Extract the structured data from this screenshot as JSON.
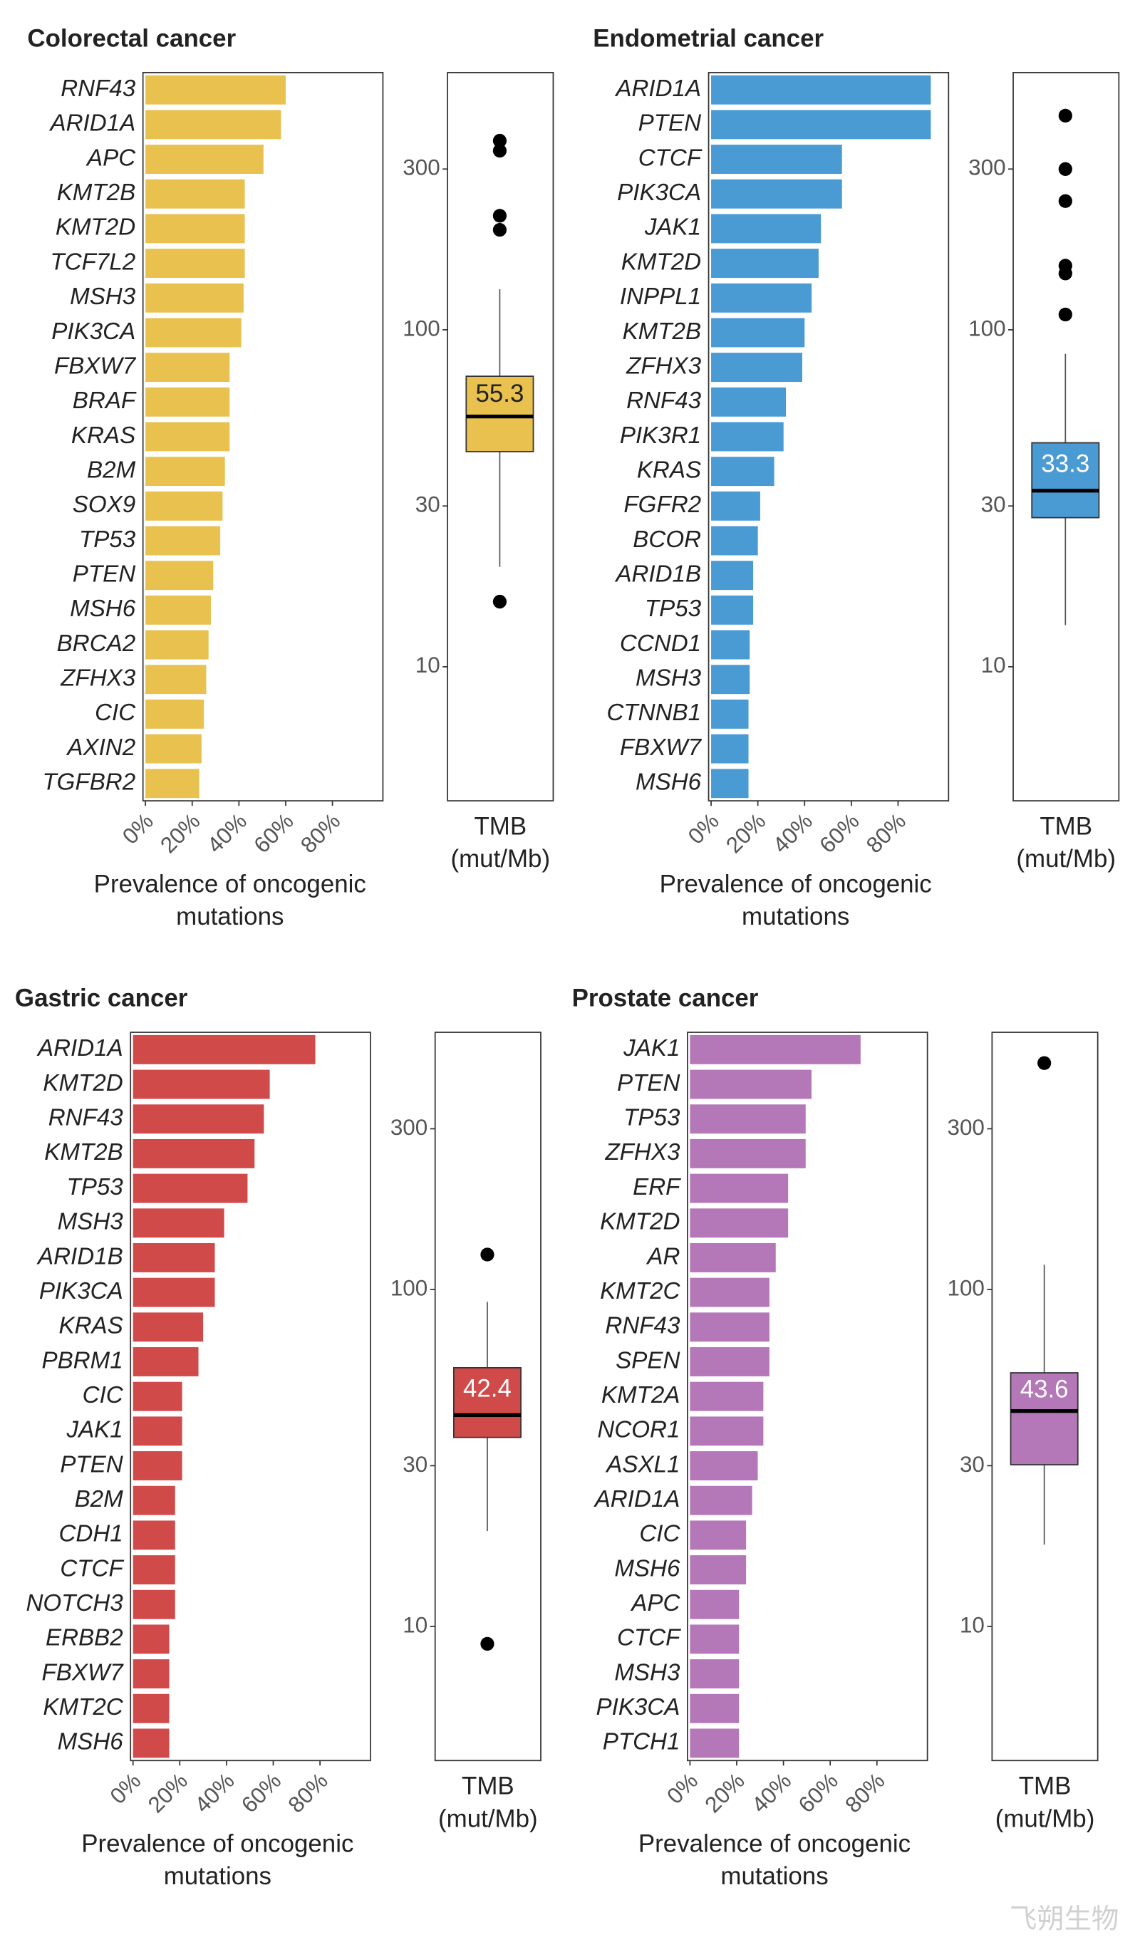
{
  "chart_data": [
    {
      "type": "bar",
      "title": "Colorectal cancer",
      "orientation": "horizontal",
      "categories": [
        "RNF43",
        "ARID1A",
        "APC",
        "KMT2B",
        "KMT2D",
        "TCF7L2",
        "MSH3",
        "PIK3CA",
        "FBXW7",
        "BRAF",
        "KRAS",
        "B2M",
        "SOX9",
        "TP53",
        "PTEN",
        "MSH6",
        "BRCA2",
        "ZFHX3",
        "CIC",
        "AXIN2",
        "TGFBR2"
      ],
      "values": [
        60,
        58,
        50.5,
        42.5,
        42.5,
        42.5,
        42,
        41,
        36,
        36,
        36,
        34,
        33,
        32,
        29,
        28,
        27,
        26,
        25,
        24,
        23
      ],
      "color": "#e8c14f",
      "xlim": [
        0,
        100
      ],
      "xticks": [
        {
          "value": 0,
          "label": "0%"
        },
        {
          "value": 20,
          "label": "20%"
        },
        {
          "value": 40,
          "label": "40%"
        },
        {
          "value": 60,
          "label": "60%"
        },
        {
          "value": 80,
          "label": "80%"
        }
      ],
      "xlabel": "Prevalence of oncogenic mutations"
    },
    {
      "type": "box",
      "ylabel": "TMB (mut/Mb)",
      "log_scale": true,
      "ylim": [
        4,
        580
      ],
      "yticks": [
        10,
        30,
        100,
        300
      ],
      "median": 55.3,
      "q1": 43.5,
      "q3": 72.8,
      "whisker_low": 19.8,
      "whisker_high": 132,
      "outliers": [
        364,
        340,
        218,
        198,
        15.6
      ],
      "color": "#e8c14f",
      "median_label_color": "#222"
    },
    {
      "type": "bar",
      "title": "Endometrial cancer",
      "orientation": "horizontal",
      "categories": [
        "ARID1A",
        "PTEN",
        "CTCF",
        "PIK3CA",
        "JAK1",
        "KMT2D",
        "INPPL1",
        "KMT2B",
        "ZFHX3",
        "RNF43",
        "PIK3R1",
        "KRAS",
        "FGFR2",
        "BCOR",
        "ARID1B",
        "TP53",
        "CCND1",
        "MSH3",
        "CTNNB1",
        "FBXW7",
        "MSH6"
      ],
      "values": [
        94,
        94,
        56,
        56,
        47,
        46,
        43,
        40,
        39,
        32,
        31,
        27,
        21,
        20,
        18,
        18,
        16.5,
        16.5,
        16,
        16,
        16
      ],
      "color": "#4a9ad4",
      "xlim": [
        0,
        100
      ],
      "xticks": [
        {
          "value": 0,
          "label": "0%"
        },
        {
          "value": 20,
          "label": "20%"
        },
        {
          "value": 40,
          "label": "40%"
        },
        {
          "value": 60,
          "label": "60%"
        },
        {
          "value": 80,
          "label": "80%"
        }
      ],
      "xlabel": "Prevalence of oncogenic mutations"
    },
    {
      "type": "box",
      "ylabel": "TMB (mut/Mb)",
      "log_scale": true,
      "ylim": [
        4,
        580
      ],
      "yticks": [
        10,
        30,
        100,
        300
      ],
      "median": 33.3,
      "q1": 27.7,
      "q3": 46.2,
      "whisker_low": 13.3,
      "whisker_high": 84.9,
      "outliers": [
        432,
        300,
        241,
        155,
        147,
        111
      ],
      "color": "#4a9ad4",
      "median_label_color": "#ffffff"
    },
    {
      "type": "bar",
      "title": "Gastric cancer",
      "orientation": "horizontal",
      "categories": [
        "ARID1A",
        "KMT2D",
        "RNF43",
        "KMT2B",
        "TP53",
        "MSH3",
        "ARID1B",
        "PIK3CA",
        "KRAS",
        "PBRM1",
        "CIC",
        "JAK1",
        "PTEN",
        "B2M",
        "CDH1",
        "CTCF",
        "NOTCH3",
        "ERBB2",
        "FBXW7",
        "KMT2C",
        "MSH6"
      ],
      "values": [
        78,
        58.5,
        56,
        52,
        49,
        39,
        35,
        35,
        30,
        28,
        21,
        21,
        21,
        18,
        18,
        18,
        18,
        15.5,
        15.5,
        15.5,
        15.5
      ],
      "color": "#d04a4a",
      "xlim": [
        0,
        100
      ],
      "xticks": [
        {
          "value": 0,
          "label": "0%"
        },
        {
          "value": 20,
          "label": "20%"
        },
        {
          "value": 40,
          "label": "40%"
        },
        {
          "value": 60,
          "label": "60%"
        },
        {
          "value": 80,
          "label": "80%"
        }
      ],
      "xlabel": "Prevalence of oncogenic mutations"
    },
    {
      "type": "box",
      "ylabel": "TMB (mut/Mb)",
      "log_scale": true,
      "ylim": [
        4,
        580
      ],
      "yticks": [
        10,
        30,
        100,
        300
      ],
      "median": 42.4,
      "q1": 36.4,
      "q3": 58.6,
      "whisker_low": 19.2,
      "whisker_high": 91.9,
      "outliers": [
        127,
        8.88
      ],
      "color": "#d04a4a",
      "median_label_color": "#ffffff"
    },
    {
      "type": "bar",
      "title": "Prostate cancer",
      "orientation": "horizontal",
      "categories": [
        "JAK1",
        "PTEN",
        "TP53",
        "ZFHX3",
        "ERF",
        "KMT2D",
        "AR",
        "KMT2C",
        "RNF43",
        "SPEN",
        "KMT2A",
        "NCOR1",
        "ASXL1",
        "ARID1A",
        "CIC",
        "MSH6",
        "APC",
        "CTCF",
        "MSH3",
        "PIK3CA",
        "PTCH1"
      ],
      "values": [
        73,
        52,
        49.5,
        49.5,
        42,
        42,
        36.7,
        34,
        34,
        34,
        31.4,
        31.4,
        29,
        26.6,
        24,
        24,
        21,
        21,
        21,
        21,
        21
      ],
      "color": "#b477b8",
      "xlim": [
        0,
        100
      ],
      "xticks": [
        {
          "value": 0,
          "label": "0%"
        },
        {
          "value": 20,
          "label": "20%"
        },
        {
          "value": 40,
          "label": "40%"
        },
        {
          "value": 60,
          "label": "60%"
        },
        {
          "value": 80,
          "label": "80%"
        }
      ],
      "xlabel": "Prevalence of oncogenic mutations"
    },
    {
      "type": "box",
      "ylabel": "TMB (mut/Mb)",
      "log_scale": true,
      "ylim": [
        4,
        580
      ],
      "yticks": [
        10,
        30,
        100,
        300
      ],
      "median": 43.6,
      "q1": 30.2,
      "q3": 56.6,
      "whisker_low": 17.5,
      "whisker_high": 118.5,
      "outliers": [
        470
      ],
      "color": "#b477b8",
      "median_label_color": "#ffffff"
    }
  ],
  "watermark": "飞朔生物"
}
